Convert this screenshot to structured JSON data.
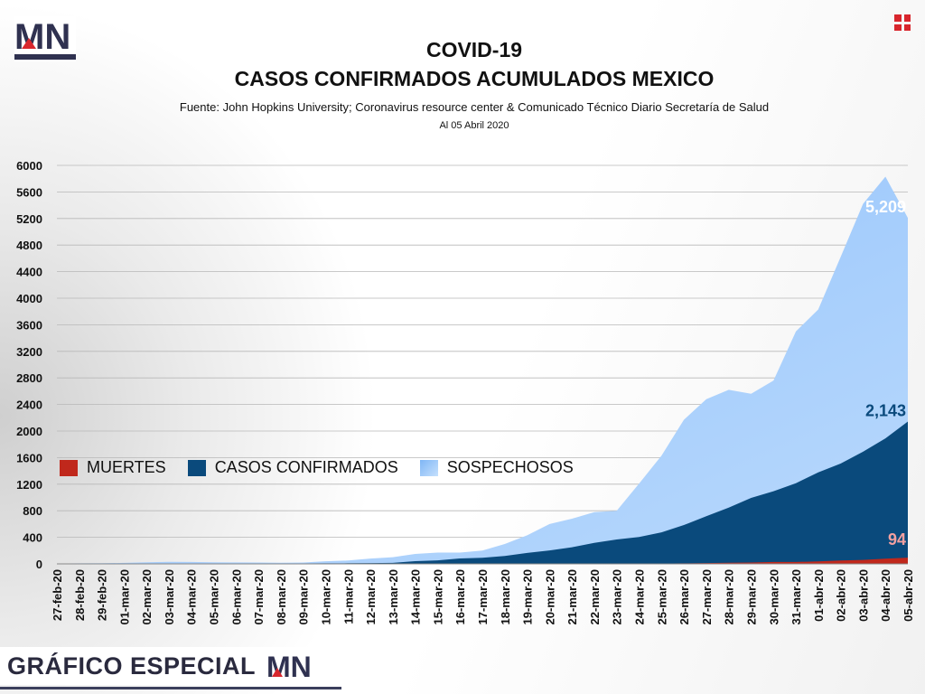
{
  "title": "COVID-19",
  "subtitle": "CASOS CONFIRMADOS ACUMULADOS MEXICO",
  "source": "Fuente: John Hopkins University; Coronavirus resource center & Comunicado Técnico Diario Secretaría de Salud",
  "date_note": "Al 05 Abril 2020",
  "brand": {
    "logo_text": "MN",
    "footer_label": "GRÁFICO ESPECIAL",
    "accent": "#d8262d",
    "dark": "#2f3150"
  },
  "legend": [
    {
      "label": "MUERTES",
      "color": "#c0281c"
    },
    {
      "label": "CASOS CONFIRMADOS",
      "color": "#0a4a7c"
    },
    {
      "label": "SOSPECHOSOS",
      "color": "#9ec9fb"
    }
  ],
  "chart_data": {
    "type": "area",
    "stacked": false,
    "x": [
      "27-feb-20",
      "28-feb-20",
      "29-feb-20",
      "01-mar-20",
      "02-mar-20",
      "03-mar-20",
      "04-mar-20",
      "05-mar-20",
      "06-mar-20",
      "07-mar-20",
      "08-mar-20",
      "09-mar-20",
      "10-mar-20",
      "11-mar-20",
      "12-mar-20",
      "13-mar-20",
      "14-mar-20",
      "15-mar-20",
      "16-mar-20",
      "17-mar-20",
      "18-mar-20",
      "19-mar-20",
      "20-mar-20",
      "21-mar-20",
      "22-mar-20",
      "23-mar-20",
      "24-mar-20",
      "25-mar-20",
      "26-mar-20",
      "27-mar-20",
      "28-mar-20",
      "29-mar-20",
      "30-mar-20",
      "31-mar-20",
      "01-abr-20",
      "02-abr-20",
      "03-abr-20",
      "04-abr-20",
      "05-abr-20"
    ],
    "ylim": [
      0,
      6000
    ],
    "yticks": [
      "0",
      "400",
      "800",
      "1200",
      "1600",
      "2000",
      "2400",
      "2800",
      "3200",
      "3600",
      "4000",
      "4400",
      "4800",
      "5200",
      "5600",
      "6000"
    ],
    "grid": true,
    "legend_position": "center-left",
    "series": [
      {
        "name": "SOSPECHOSOS",
        "color": "#9ec9fb",
        "values": [
          5,
          8,
          10,
          15,
          25,
          30,
          28,
          25,
          22,
          20,
          18,
          20,
          40,
          50,
          80,
          100,
          150,
          170,
          170,
          200,
          300,
          430,
          600,
          680,
          780,
          800,
          1210,
          1630,
          2170,
          2480,
          2620,
          2560,
          2760,
          3500,
          3830,
          4620,
          5420,
          5830,
          5209
        ]
      },
      {
        "name": "CASOS CONFIRMADOS",
        "color": "#0a4a7c",
        "values": [
          1,
          2,
          4,
          5,
          5,
          5,
          5,
          5,
          6,
          7,
          7,
          7,
          8,
          10,
          12,
          15,
          41,
          53,
          82,
          93,
          118,
          164,
          203,
          251,
          316,
          367,
          405,
          475,
          585,
          717,
          848,
          993,
          1094,
          1215,
          1378,
          1510,
          1688,
          1890,
          2143
        ]
      },
      {
        "name": "MUERTES",
        "color": "#c0281c",
        "values": [
          0,
          0,
          0,
          0,
          0,
          0,
          0,
          0,
          0,
          0,
          0,
          0,
          0,
          0,
          0,
          0,
          0,
          0,
          0,
          0,
          1,
          2,
          2,
          2,
          2,
          4,
          5,
          6,
          8,
          12,
          16,
          20,
          28,
          29,
          37,
          50,
          60,
          79,
          94
        ]
      }
    ],
    "labels": [
      {
        "series": "SOSPECHOSOS",
        "text": "5,209",
        "color": "#ffffff"
      },
      {
        "series": "CASOS CONFIRMADOS",
        "text": "2,143",
        "color": "#0a4a7c"
      },
      {
        "series": "MUERTES",
        "text": "94",
        "color": "#f2a0a0"
      }
    ]
  }
}
